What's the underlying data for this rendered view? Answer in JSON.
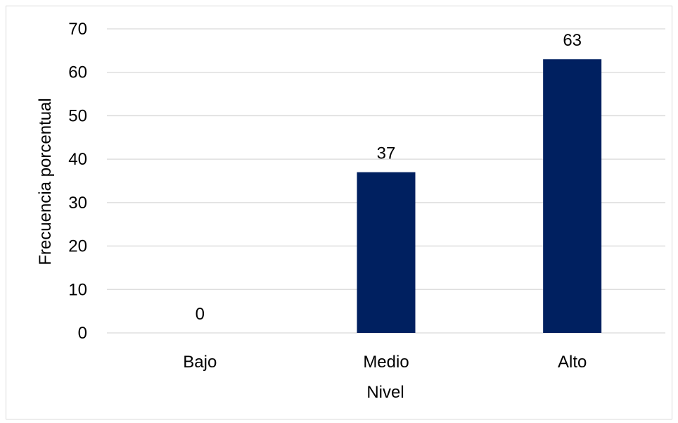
{
  "chart_data": {
    "type": "bar",
    "categories": [
      "Bajo",
      "Medio",
      "Alto"
    ],
    "values": [
      0,
      37,
      63
    ],
    "data_labels": [
      "0",
      "37",
      "63"
    ],
    "title": "",
    "xlabel": "Nivel",
    "ylabel": "Frecuencia porcentual",
    "ylim": [
      0,
      70
    ],
    "yticks": [
      "0",
      "10",
      "20",
      "30",
      "40",
      "50",
      "60",
      "70"
    ],
    "grid": true,
    "legend": "none",
    "bar_color": "#002060",
    "gridline_color": "#d9d9d9"
  }
}
